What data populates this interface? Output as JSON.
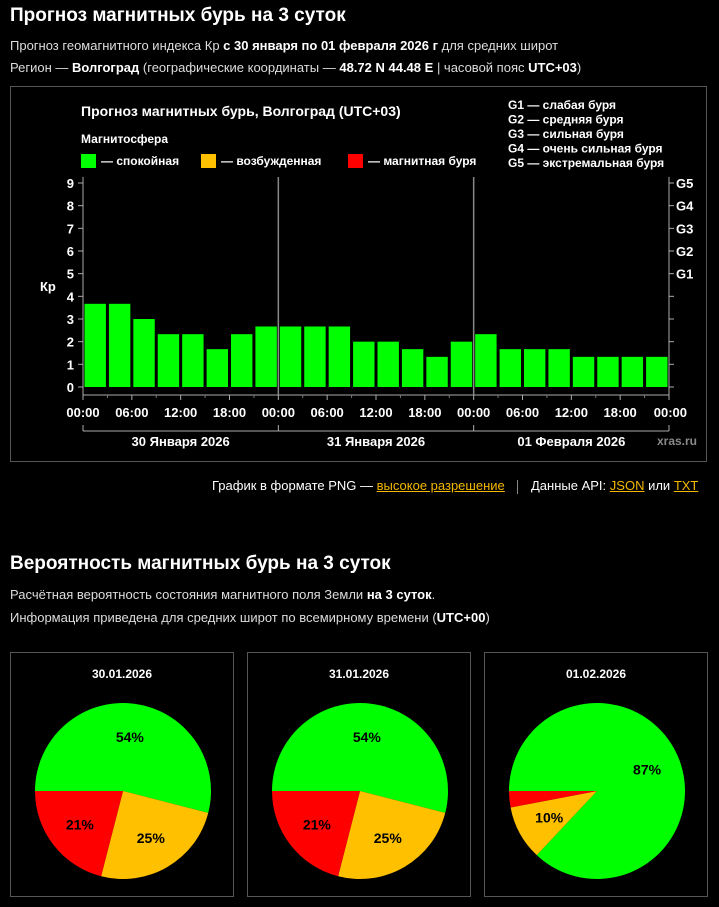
{
  "header": {
    "title": "Прогноз магнитных бурь на 3 суток",
    "line1_prefix": "Прогноз геомагнитного индекса Кр",
    "line1_bold": "с 30 января по 01 февраля 2026 г",
    "line1_suffix": "для средних широт",
    "line2_prefix": "Регион —",
    "line2_city": "Волгоград",
    "line2_mid": "(географические координаты —",
    "line2_coords": "48.72 N 44.48 E",
    "line2_tz_label": "| часовой пояс",
    "line2_tz": "UTC+03",
    "line2_end": ")"
  },
  "chart_data": {
    "type": "bar",
    "title": "Прогноз магнитных бурь, Волгоград (UTC+03)",
    "legend_title": "Магнитосфера",
    "legend": [
      {
        "label": "— спокойная",
        "color": "#00ff00"
      },
      {
        "label": "— возбужденная",
        "color": "#ffc000"
      },
      {
        "label": "— магнитная буря",
        "color": "#ff0000"
      }
    ],
    "g_legend": [
      "G1 — слабая буря",
      "G2 — средняя буря",
      "G3 — сильная буря",
      "G4 — очень сильная буря",
      "G5 — экстремальная буря"
    ],
    "ylabel": "Кр",
    "ylim": [
      0,
      9
    ],
    "yticks": [
      "0",
      "1",
      "2",
      "3",
      "4",
      "5",
      "6",
      "7",
      "8",
      "9"
    ],
    "g_ticks": [
      {
        "label": "G1",
        "kp": 5
      },
      {
        "label": "G2",
        "kp": 6
      },
      {
        "label": "G3",
        "kp": 7
      },
      {
        "label": "G4",
        "kp": 8
      },
      {
        "label": "G5",
        "kp": 9
      }
    ],
    "xticks": [
      "00:00",
      "06:00",
      "12:00",
      "18:00",
      "00:00",
      "06:00",
      "12:00",
      "18:00",
      "00:00",
      "06:00",
      "12:00",
      "18:00",
      "00:00"
    ],
    "days": [
      "30 Января 2026",
      "31 Января 2026",
      "01 Февраля 2026"
    ],
    "values": [
      3.67,
      3.67,
      3.0,
      2.33,
      2.33,
      1.67,
      2.33,
      2.67,
      2.67,
      2.67,
      2.67,
      2.0,
      2.0,
      1.67,
      1.33,
      2.0,
      2.33,
      1.67,
      1.67,
      1.67,
      1.33,
      1.33,
      1.33,
      1.33
    ],
    "bar_color": "#00ff00",
    "grid": false,
    "watermark": "xras.ru"
  },
  "links": {
    "png_prefix": "График в формате PNG —",
    "png_link": "высокое разрешение",
    "api_prefix": "Данные API:",
    "json_link": "JSON",
    "or": "или",
    "txt_link": "TXT"
  },
  "probability": {
    "title": "Вероятность магнитных бурь на 3 суток",
    "line1_prefix": "Расчётная вероятность состояния магнитного поля Земли",
    "line1_bold": "на 3 суток",
    "line1_end": ".",
    "line2_prefix": "Информация приведена для средних широт по всемирному времени (",
    "line2_bold": "UTC+00",
    "line2_end": ")"
  },
  "colors": {
    "quiet": "#00ff00",
    "active": "#ffc000",
    "storm": "#ff0000"
  },
  "pies": [
    {
      "date": "30.01.2026",
      "quiet": 54,
      "active": 25,
      "storm": 21,
      "labels": {
        "quiet": "54%",
        "active": "25%",
        "storm": "21%"
      }
    },
    {
      "date": "31.01.2026",
      "quiet": 54,
      "active": 25,
      "storm": 21,
      "labels": {
        "quiet": "54%",
        "active": "25%",
        "storm": "21%"
      }
    },
    {
      "date": "01.02.2026",
      "quiet": 87,
      "active": 10,
      "storm": 3,
      "labels": {
        "quiet": "87%",
        "active": "10%",
        "storm": ""
      }
    }
  ]
}
